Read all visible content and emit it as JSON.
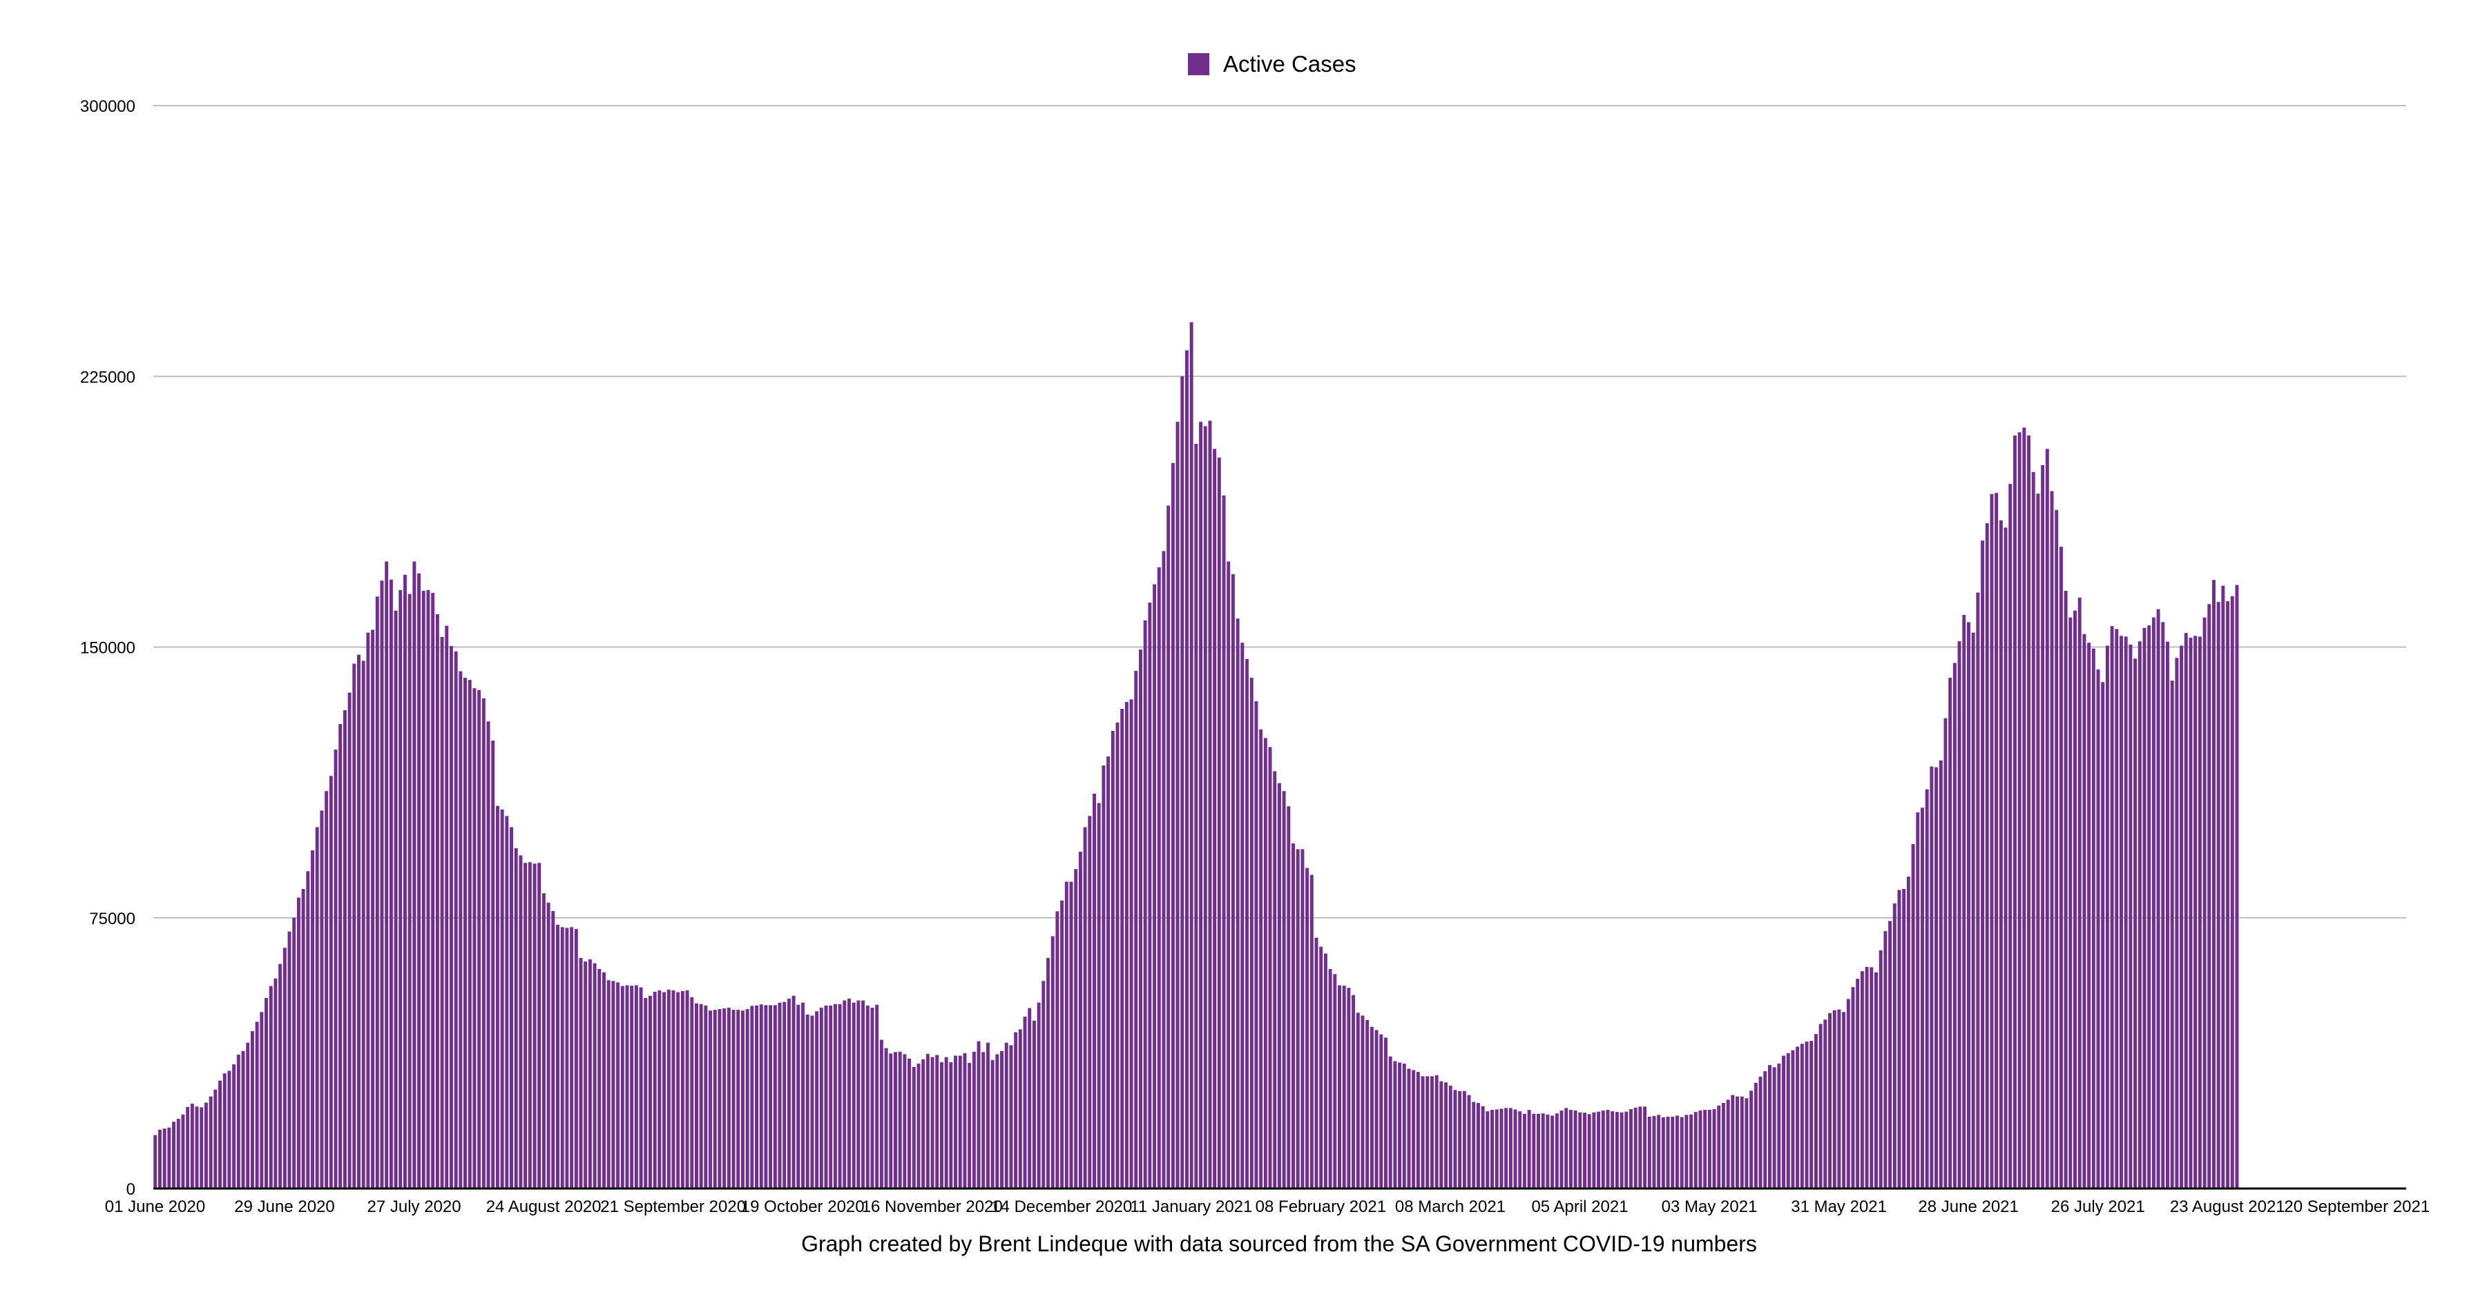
{
  "chart_data": {
    "type": "bar",
    "title": "",
    "xlabel": "",
    "ylabel": "",
    "legend": {
      "position": "top-center",
      "entries": [
        "Active Cases"
      ]
    },
    "caption": "Graph created by Brent Lindeque with data sourced from the SA Government COVID-19 numbers",
    "x_start": "01 June 2020",
    "x_interval": "1 day",
    "x_range_days": [
      0,
      487
    ],
    "ylim": [
      0,
      300000
    ],
    "grid": true,
    "color": "#712f8c",
    "y_ticks": [
      "0",
      "75000",
      "150000",
      "225000",
      "300000"
    ],
    "y_tick_values": [
      0,
      75000,
      150000,
      225000,
      300000
    ],
    "x_ticks": [
      {
        "day": 0,
        "label": "01 June 2020"
      },
      {
        "day": 28,
        "label": "29 June 2020"
      },
      {
        "day": 56,
        "label": "27 July 2020"
      },
      {
        "day": 84,
        "label": "24 August 2020"
      },
      {
        "day": 112,
        "label": "21 September 2020"
      },
      {
        "day": 140,
        "label": "19 October 2020"
      },
      {
        "day": 168,
        "label": "16 November 2020"
      },
      {
        "day": 196,
        "label": "14 December 2020"
      },
      {
        "day": 224,
        "label": "11 January 2021"
      },
      {
        "day": 252,
        "label": "08 February 2021"
      },
      {
        "day": 280,
        "label": "08 March 2021"
      },
      {
        "day": 308,
        "label": "05 April 2021"
      },
      {
        "day": 336,
        "label": "03 May 2021"
      },
      {
        "day": 364,
        "label": "31 May 2021"
      },
      {
        "day": 392,
        "label": "28 June 2021"
      },
      {
        "day": 420,
        "label": "26 July 2021"
      },
      {
        "day": 448,
        "label": "23 August 2021"
      },
      {
        "day": 476,
        "label": "20 September 2021"
      }
    ],
    "series": [
      {
        "name": "Active Cases",
        "values": [
          14800,
          16300,
          16600,
          16900,
          18500,
          19300,
          20500,
          22600,
          23500,
          22700,
          22500,
          23800,
          25500,
          27400,
          29900,
          31900,
          32600,
          34400,
          37100,
          38100,
          40400,
          43600,
          46200,
          48900,
          52800,
          56100,
          58200,
          62200,
          66700,
          71200,
          75000,
          80600,
          83000,
          87900,
          93700,
          100100,
          104700,
          110100,
          114300,
          121600,
          128700,
          132500,
          137400,
          145400,
          147900,
          146200,
          154000,
          154800,
          164000,
          168400,
          173700,
          168700,
          160100,
          165800,
          170000,
          164700,
          173700,
          170400,
          165600,
          165800,
          165000,
          159100,
          152800,
          155900,
          150300,
          148800,
          143300,
          141500,
          140900,
          138600,
          138100,
          135800,
          129400,
          124100,
          106000,
          105000,
          103200,
          100100,
          94300,
          92300,
          90200,
          90400,
          90000,
          90200,
          81800,
          79200,
          76900,
          73100,
          72400,
          72200,
          72400,
          71900,
          63900,
          62900,
          63500,
          62400,
          60800,
          59900,
          57700,
          57500,
          57100,
          56100,
          56300,
          56200,
          56300,
          55700,
          52800,
          53400,
          54500,
          54900,
          54400,
          55100,
          54900,
          54400,
          54700,
          54900,
          53000,
          51300,
          51100,
          50700,
          49300,
          49500,
          49700,
          49900,
          50100,
          49500,
          49500,
          49300,
          49700,
          50600,
          50700,
          51000,
          50800,
          50800,
          50800,
          51500,
          51700,
          52600,
          53400,
          50900,
          51500,
          48200,
          47900,
          49100,
          50100,
          50700,
          50700,
          51100,
          51100,
          52100,
          52600,
          51500,
          52100,
          52100,
          50700,
          50100,
          50900,
          41200,
          38900,
          37400,
          37800,
          37900,
          37200,
          36000,
          33700,
          34600,
          35800,
          37300,
          36400,
          37000,
          35000,
          36400,
          35000,
          36800,
          36800,
          37500,
          34800,
          37900,
          40800,
          37800,
          40400,
          35600,
          37200,
          38100,
          40400,
          39700,
          43300,
          44100,
          47600,
          50000,
          46500,
          51500,
          57500,
          63900,
          69900,
          76800,
          79800,
          85000,
          85000,
          88500,
          93300,
          100100,
          103200,
          109400,
          106800,
          117200,
          119700,
          126800,
          129100,
          132900,
          134800,
          135500,
          143400,
          149300,
          157400,
          162300,
          167400,
          172100,
          176600,
          189200,
          201000,
          212400,
          225000,
          232200,
          240000,
          206300,
          212400,
          211200,
          212700,
          204900,
          202500,
          192000,
          173700,
          170200,
          157900,
          151200,
          146700,
          141500,
          135000,
          127200,
          124800,
          122300,
          115600,
          112300,
          110100,
          105900,
          95600,
          94000,
          94000,
          88800,
          86900,
          69500,
          67000,
          65100,
          60800,
          59400,
          56300,
          56200,
          55600,
          53600,
          48700,
          47900,
          46700,
          44800,
          43900,
          42700,
          41800,
          36600,
          35300,
          34900,
          34600,
          33200,
          32800,
          32300,
          31100,
          31100,
          31100,
          31400,
          29700,
          29400,
          28500,
          27300,
          27000,
          27000,
          25900,
          24000,
          23700,
          22800,
          21400,
          21800,
          21900,
          22100,
          22300,
          22300,
          21900,
          21400,
          20700,
          21800,
          20700,
          20700,
          20800,
          20500,
          20200,
          20800,
          21600,
          22300,
          21800,
          21600,
          21100,
          21000,
          20600,
          21100,
          21300,
          21600,
          21800,
          21400,
          21200,
          21100,
          21300,
          22000,
          22400,
          22700,
          22700,
          19900,
          20100,
          20400,
          19700,
          19900,
          19900,
          20200,
          19800,
          20400,
          20500,
          21200,
          21600,
          21800,
          21800,
          22000,
          23000,
          23700,
          24600,
          25900,
          25500,
          25500,
          25000,
          27100,
          29300,
          31000,
          32500,
          34200,
          33600,
          34600,
          36800,
          37500,
          38300,
          39300,
          40100,
          40700,
          40900,
          42800,
          45600,
          46800,
          48600,
          49400,
          49600,
          48900,
          52500,
          55800,
          58100,
          60200,
          61400,
          61300,
          59900,
          66000,
          71300,
          74100,
          79000,
          82700,
          83000,
          86400,
          95400,
          104200,
          105500,
          110600,
          116900,
          116700,
          118600,
          130300,
          141500,
          145600,
          151600,
          158900,
          156900,
          154000,
          165100,
          179500,
          184300,
          192400,
          192700,
          185100,
          183100,
          195200,
          208600,
          209500,
          210800,
          208600,
          198500,
          192500,
          200400,
          204900,
          193200,
          188000,
          177800,
          165600,
          158200,
          160100,
          163700,
          153600,
          151200,
          149600,
          143800,
          140300,
          150400,
          155800,
          155000,
          153100,
          152900,
          150700,
          146800,
          151600,
          155300,
          156000,
          158200,
          160500,
          156900,
          151500,
          140700,
          147000,
          150400,
          153900,
          152600,
          153100,
          152900,
          158200,
          161900,
          168600,
          162500,
          167000,
          162700,
          164100,
          167200
        ]
      }
    ]
  }
}
